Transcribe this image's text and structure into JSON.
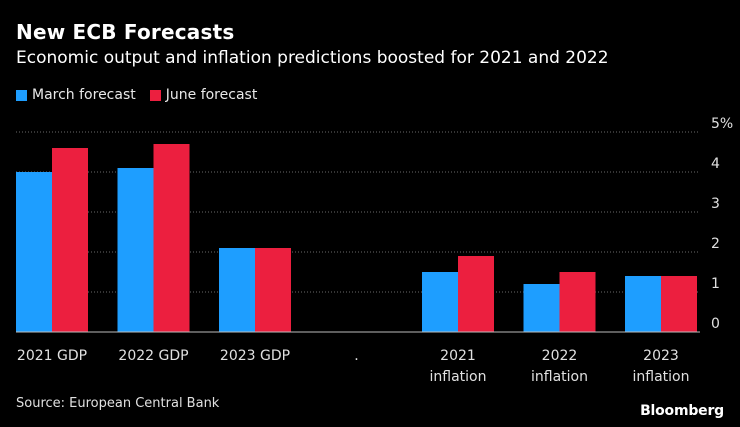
{
  "header": {
    "title": "New ECB Forecasts",
    "subtitle": "Economic output and inflation predictions boosted for 2021 and 2022"
  },
  "legend": [
    {
      "label": "March forecast",
      "color": "#1e9eff"
    },
    {
      "label": "June forecast",
      "color": "#ec1f3f"
    }
  ],
  "footer": {
    "source": "Source: European Central Bank",
    "brand": "Bloomberg"
  },
  "chart_data": {
    "type": "bar",
    "title": "New ECB Forecasts",
    "subtitle": "Economic output and inflation predictions boosted for 2021 and 2022",
    "categories": [
      [
        "2021 GDP"
      ],
      [
        "2022 GDP"
      ],
      [
        "2023 GDP"
      ],
      [
        "."
      ],
      [
        "2021",
        "inflation"
      ],
      [
        "2022",
        "inflation"
      ],
      [
        "2023",
        "inflation"
      ]
    ],
    "series": [
      {
        "name": "March forecast",
        "color": "#1e9eff",
        "values": [
          4.0,
          4.1,
          2.1,
          null,
          1.5,
          1.2,
          1.4
        ]
      },
      {
        "name": "June forecast",
        "color": "#ec1f3f",
        "values": [
          4.6,
          4.7,
          2.1,
          null,
          1.9,
          1.5,
          1.4
        ]
      }
    ],
    "ylim": [
      0,
      5
    ],
    "yticks": [
      0,
      1,
      2,
      3,
      4,
      5
    ],
    "ytick_labels": [
      "0",
      "1",
      "2",
      "3",
      "4",
      "5%"
    ],
    "xlabel": "",
    "ylabel": "",
    "grid": true,
    "legend_position": "top-left"
  }
}
